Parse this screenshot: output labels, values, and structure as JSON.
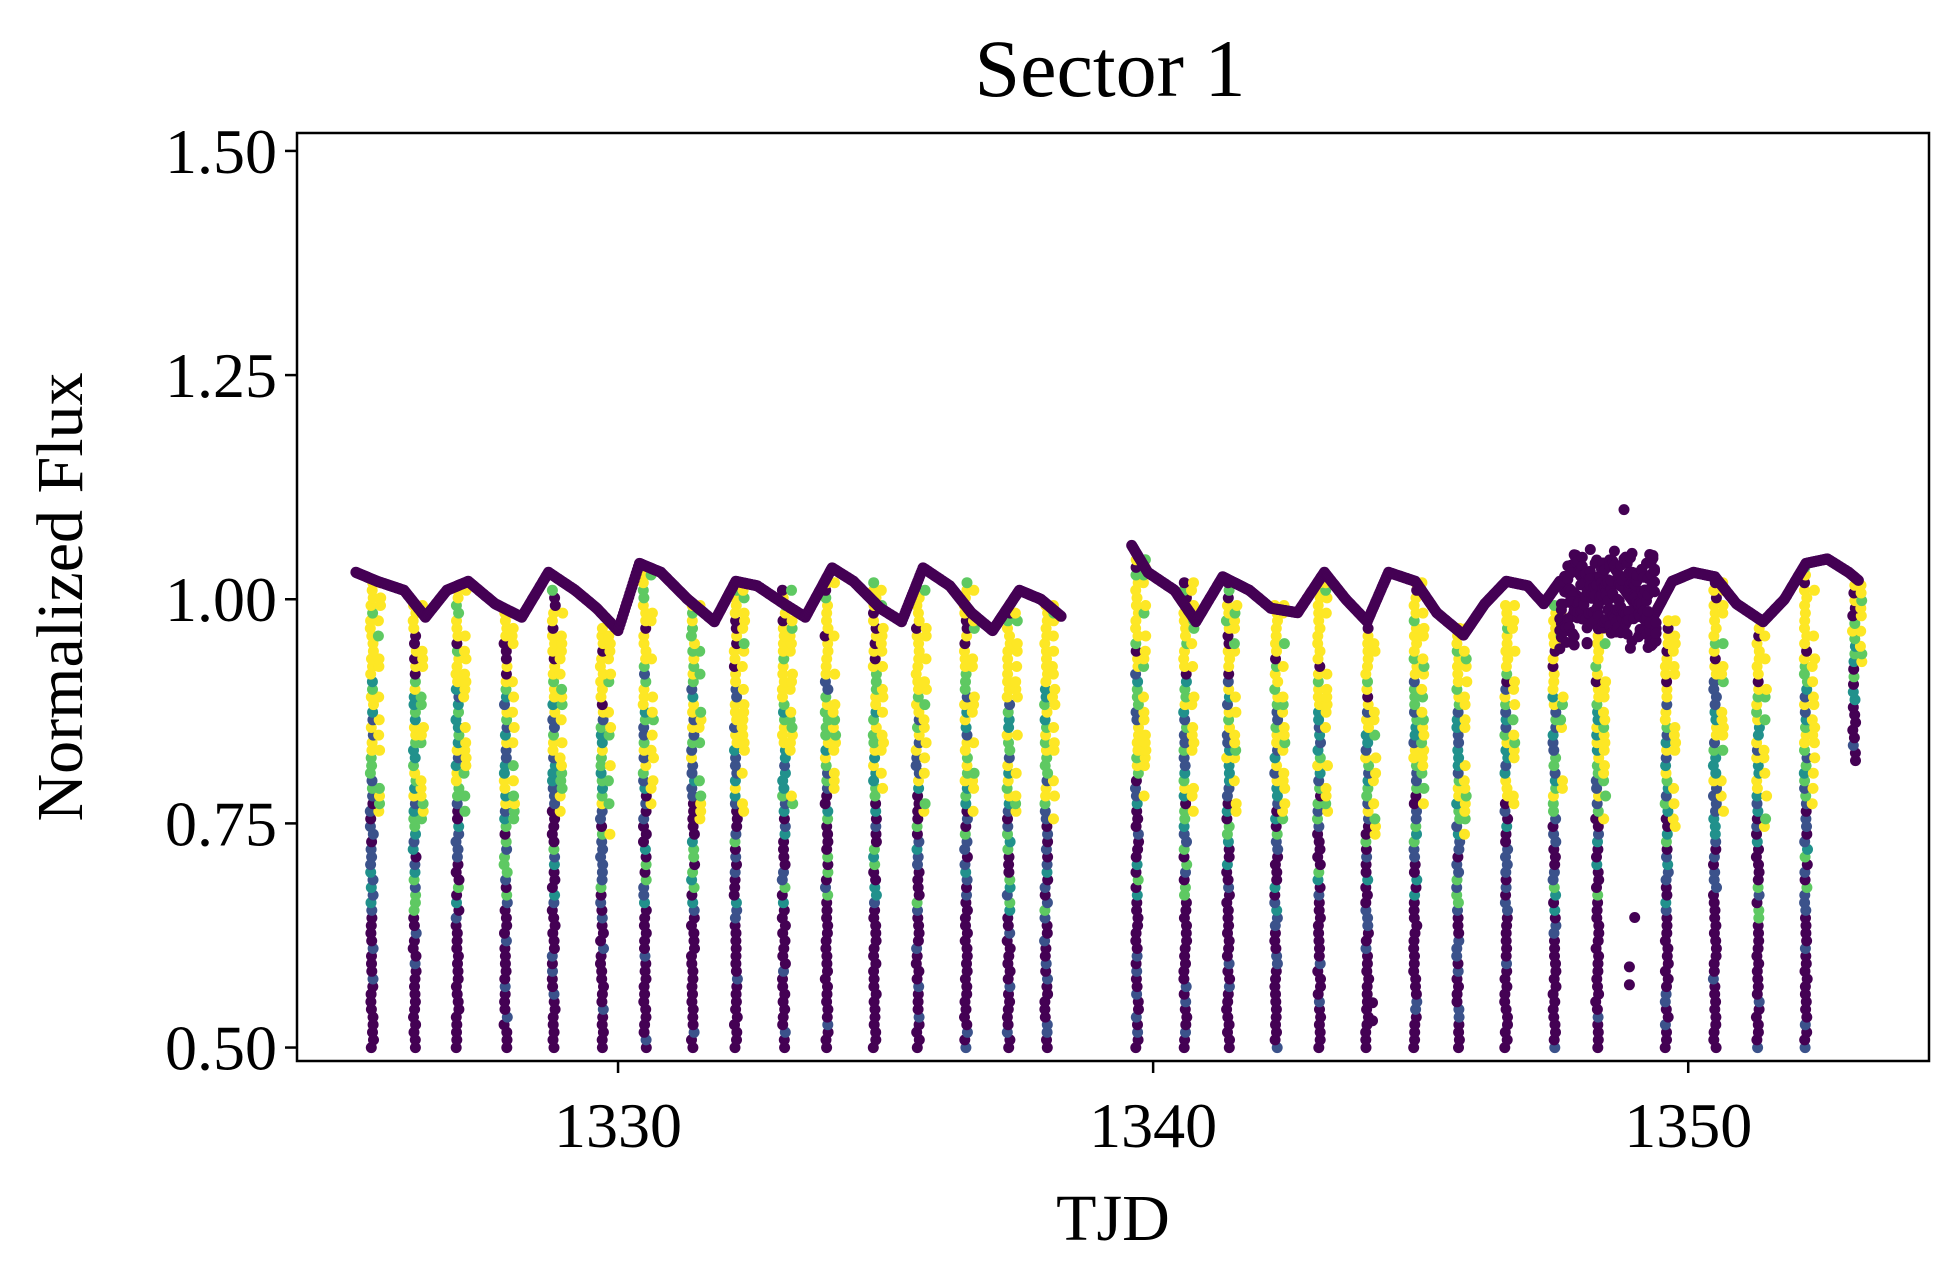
{
  "chart_data": {
    "type": "scatter",
    "title": "Sector 1",
    "xlabel": "TJD",
    "ylabel": "Normalized Flux",
    "xlim": [
      1324.0,
      1354.5
    ],
    "ylim": [
      0.485,
      1.52
    ],
    "x_ticks": [
      {
        "value": 1330,
        "label": "1330"
      },
      {
        "value": 1340,
        "label": "1340"
      },
      {
        "value": 1350,
        "label": "1350"
      }
    ],
    "y_ticks": [
      {
        "value": 0.5,
        "label": "0.50"
      },
      {
        "value": 0.75,
        "label": "0.75"
      },
      {
        "value": 1.0,
        "label": "1.00"
      },
      {
        "value": 1.25,
        "label": "1.25"
      },
      {
        "value": 1.5,
        "label": "1.50"
      }
    ],
    "grid": false,
    "colormap": [
      "#440154",
      "#3b528b",
      "#21918c",
      "#5ec962",
      "#fde725"
    ],
    "baseline_series": {
      "x": [
        1325.1,
        1325.5,
        1326.0,
        1326.4,
        1326.8,
        1327.2,
        1327.7,
        1328.2,
        1328.7,
        1329.2,
        1329.6,
        1330.0,
        1330.4,
        1330.8,
        1331.3,
        1331.8,
        1332.2,
        1332.6,
        1333.1,
        1333.5,
        1334.0,
        1334.4,
        1334.9,
        1335.3,
        1335.7,
        1336.2,
        1336.6,
        1337.0,
        1337.5,
        1337.9,
        1338.3,
        1339.6,
        1339.9,
        1340.4,
        1340.8,
        1341.3,
        1341.8,
        1342.2,
        1342.7,
        1343.2,
        1343.6,
        1344.0,
        1344.4,
        1344.9,
        1345.3,
        1345.8,
        1346.2,
        1346.6,
        1347.0,
        1347.3,
        1347.6,
        1348.0,
        1348.4,
        1348.7,
        1349.0,
        1349.3,
        1349.7,
        1350.1,
        1350.5,
        1350.9,
        1351.4,
        1351.8,
        1352.2,
        1352.6,
        1353.0,
        1353.2
      ],
      "y": [
        1.03,
        1.02,
        1.01,
        0.98,
        1.01,
        1.02,
        0.995,
        0.98,
        1.03,
        1.01,
        0.99,
        0.965,
        1.04,
        1.03,
        1.0,
        0.975,
        1.02,
        1.015,
        0.995,
        0.98,
        1.035,
        1.02,
        0.99,
        0.975,
        1.035,
        1.015,
        0.985,
        0.965,
        1.01,
        1.0,
        0.98,
        1.06,
        1.03,
        1.01,
        0.975,
        1.025,
        1.01,
        0.99,
        0.985,
        1.03,
        1.0,
        0.975,
        1.03,
        1.02,
        0.985,
        0.96,
        0.995,
        1.02,
        1.015,
        0.995,
        1.02,
        1.0,
        1.01,
        1.02,
        0.995,
        0.975,
        1.02,
        1.03,
        1.025,
        0.995,
        0.975,
        1.0,
        1.04,
        1.045,
        1.03,
        1.02
      ]
    },
    "eclipse_columns": [
      {
        "x": 1325.4,
        "y_min": 0.5,
        "y_max": 1.02
      },
      {
        "x": 1326.2,
        "y_min": 0.5,
        "y_max": 1.0
      },
      {
        "x": 1327.0,
        "y_min": 0.5,
        "y_max": 1.01
      },
      {
        "x": 1327.9,
        "y_min": 0.5,
        "y_max": 0.99
      },
      {
        "x": 1328.8,
        "y_min": 0.5,
        "y_max": 1.01
      },
      {
        "x": 1329.7,
        "y_min": 0.5,
        "y_max": 0.97
      },
      {
        "x": 1330.5,
        "y_min": 0.5,
        "y_max": 1.03
      },
      {
        "x": 1331.4,
        "y_min": 0.5,
        "y_max": 1.0
      },
      {
        "x": 1332.2,
        "y_min": 0.5,
        "y_max": 1.02
      },
      {
        "x": 1333.1,
        "y_min": 0.5,
        "y_max": 1.01
      },
      {
        "x": 1333.9,
        "y_min": 0.5,
        "y_max": 1.02
      },
      {
        "x": 1334.8,
        "y_min": 0.5,
        "y_max": 1.02
      },
      {
        "x": 1335.6,
        "y_min": 0.5,
        "y_max": 1.01
      },
      {
        "x": 1336.5,
        "y_min": 0.5,
        "y_max": 1.02
      },
      {
        "x": 1337.3,
        "y_min": 0.5,
        "y_max": 0.99
      },
      {
        "x": 1338.0,
        "y_min": 0.5,
        "y_max": 1.0
      },
      {
        "x": 1339.7,
        "y_min": 0.5,
        "y_max": 1.05
      },
      {
        "x": 1340.6,
        "y_min": 0.5,
        "y_max": 1.02
      },
      {
        "x": 1341.4,
        "y_min": 0.5,
        "y_max": 1.02
      },
      {
        "x": 1342.3,
        "y_min": 0.5,
        "y_max": 1.0
      },
      {
        "x": 1343.1,
        "y_min": 0.5,
        "y_max": 1.02
      },
      {
        "x": 1344.0,
        "y_min": 0.5,
        "y_max": 0.97
      },
      {
        "x": 1344.9,
        "y_min": 0.5,
        "y_max": 1.02
      },
      {
        "x": 1345.7,
        "y_min": 0.5,
        "y_max": 0.97
      },
      {
        "x": 1346.6,
        "y_min": 0.5,
        "y_max": 1.0
      },
      {
        "x": 1347.5,
        "y_min": 0.5,
        "y_max": 1.0
      },
      {
        "x": 1348.3,
        "y_min": 0.5,
        "y_max": 1.0
      },
      {
        "x": 1349.6,
        "y_min": 0.5,
        "y_max": 0.98
      },
      {
        "x": 1350.5,
        "y_min": 0.5,
        "y_max": 1.02
      },
      {
        "x": 1351.3,
        "y_min": 0.5,
        "y_max": 0.97
      },
      {
        "x": 1352.2,
        "y_min": 0.5,
        "y_max": 1.04
      },
      {
        "x": 1353.1,
        "y_min": 0.82,
        "y_max": 1.02
      }
    ],
    "outlier_points": [
      {
        "x": 1348.8,
        "y": 1.1
      },
      {
        "x": 1349.0,
        "y": 0.645
      },
      {
        "x": 1348.9,
        "y": 0.59
      },
      {
        "x": 1348.9,
        "y": 0.57
      },
      {
        "x": 1344.1,
        "y": 0.53
      },
      {
        "x": 1344.1,
        "y": 0.55
      }
    ]
  }
}
